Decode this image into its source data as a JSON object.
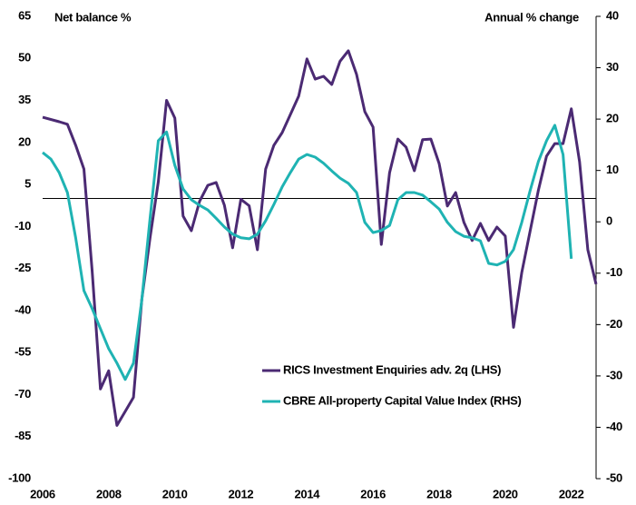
{
  "chart_data": {
    "type": "line",
    "ylabel": "Net balance %",
    "y2label": "Annual % change",
    "xlim": [
      2006,
      2022.75
    ],
    "xticks": [
      2006,
      2008,
      2010,
      2012,
      2014,
      2016,
      2018,
      2020,
      2022
    ],
    "ylim": [
      -100,
      65
    ],
    "yticks": [
      65,
      50,
      35,
      20,
      5,
      -10,
      -25,
      -40,
      -55,
      -70,
      -85,
      -100
    ],
    "y2lim": [
      -50,
      40
    ],
    "y2ticks": [
      40,
      30,
      20,
      10,
      0,
      -10,
      -20,
      -30,
      -40,
      -50
    ],
    "hline": 0,
    "series": [
      {
        "name": "RICS Investment Enquiries adv. 2q (LHS)",
        "color": "#4b2a73",
        "x": [
          2006,
          2006.5,
          2006.75,
          2007,
          2007.25,
          2007.5,
          2007.75,
          2008,
          2008.25,
          2008.5,
          2008.75,
          2009,
          2009.25,
          2009.5,
          2009.75,
          2010,
          2010.25,
          2010.5,
          2010.75,
          2011,
          2011.25,
          2011.5,
          2011.75,
          2012,
          2012.25,
          2012.5,
          2012.75,
          2013,
          2013.25,
          2013.5,
          2013.75,
          2014,
          2014.25,
          2014.5,
          2014.75,
          2015,
          2015.25,
          2015.5,
          2015.75,
          2016,
          2016.25,
          2016.5,
          2016.75,
          2017,
          2017.25,
          2017.5,
          2017.75,
          2018,
          2018.25,
          2018.5,
          2018.75,
          2019,
          2019.25,
          2019.5,
          2019.75,
          2020,
          2020.25,
          2020.5,
          2020.75,
          2021,
          2021.25,
          2021.5,
          2021.75,
          2022,
          2022.25,
          2022.5,
          2022.75
        ],
        "values": [
          29,
          27.4,
          26.5,
          19,
          10.5,
          -26,
          -68,
          -61.5,
          -81,
          -76,
          -71,
          -36,
          -14,
          6,
          35,
          28.7,
          -6.3,
          -11.5,
          -1,
          4.7,
          5.7,
          -2.4,
          -17.6,
          -0.3,
          -2.6,
          -18.3,
          10.5,
          19,
          23.5,
          30,
          36.5,
          49.8,
          42.6,
          43.6,
          40.7,
          49,
          52.7,
          44.3,
          31,
          25.5,
          -16.4,
          9.2,
          21.2,
          18.3,
          9.9,
          21,
          21.2,
          12.5,
          -2.7,
          2.1,
          -8.5,
          -15,
          -8.9,
          -15,
          -10.2,
          -13.4,
          -46,
          -26.4,
          -11.8,
          2.8,
          15.1,
          19.6,
          19.6,
          32,
          13.1,
          -18.3,
          -30.6
        ]
      },
      {
        "name": "CBRE All-property Capital Value Index (RHS)",
        "color": "#1fb3b3",
        "axis": "y2",
        "x": [
          2006,
          2006.25,
          2006.5,
          2006.75,
          2007,
          2007.25,
          2007.5,
          2007.75,
          2008,
          2008.25,
          2008.5,
          2008.75,
          2009,
          2009.25,
          2009.5,
          2009.75,
          2010,
          2010.25,
          2010.5,
          2010.75,
          2011,
          2011.25,
          2011.5,
          2011.75,
          2012,
          2012.25,
          2012.5,
          2012.75,
          2013,
          2013.25,
          2013.5,
          2013.75,
          2014,
          2014.25,
          2014.5,
          2014.75,
          2015,
          2015.25,
          2015.5,
          2015.75,
          2016,
          2016.25,
          2016.5,
          2016.75,
          2017,
          2017.25,
          2017.5,
          2017.75,
          2018,
          2018.25,
          2018.5,
          2018.75,
          2019,
          2019.25,
          2019.5,
          2019.75,
          2020,
          2020.25,
          2020.5,
          2020.75,
          2021,
          2021.25,
          2021.5,
          2021.75,
          2022
        ],
        "values": [
          13.5,
          12.2,
          9.6,
          5.7,
          -3.1,
          -13.4,
          -16.9,
          -20.8,
          -24.7,
          -27.5,
          -30.7,
          -27.5,
          -15.2,
          0.7,
          15.8,
          17.5,
          11,
          6.4,
          4.3,
          3.2,
          2.3,
          0.7,
          -1,
          -2.4,
          -3.1,
          -3.3,
          -2.4,
          0.2,
          3.4,
          6.8,
          9.6,
          12.2,
          13.1,
          12.6,
          11.4,
          9.9,
          8.5,
          7.5,
          5.7,
          -0.1,
          -2.1,
          -1.7,
          -0.7,
          4.3,
          5.7,
          5.7,
          5.2,
          3.9,
          2.5,
          -0.1,
          -1.9,
          -2.8,
          -3.1,
          -3.7,
          -8.1,
          -8.4,
          -7.7,
          -5.4,
          -0.1,
          6,
          11.7,
          15.8,
          18.8,
          13.1,
          -7.2
        ]
      }
    ]
  }
}
